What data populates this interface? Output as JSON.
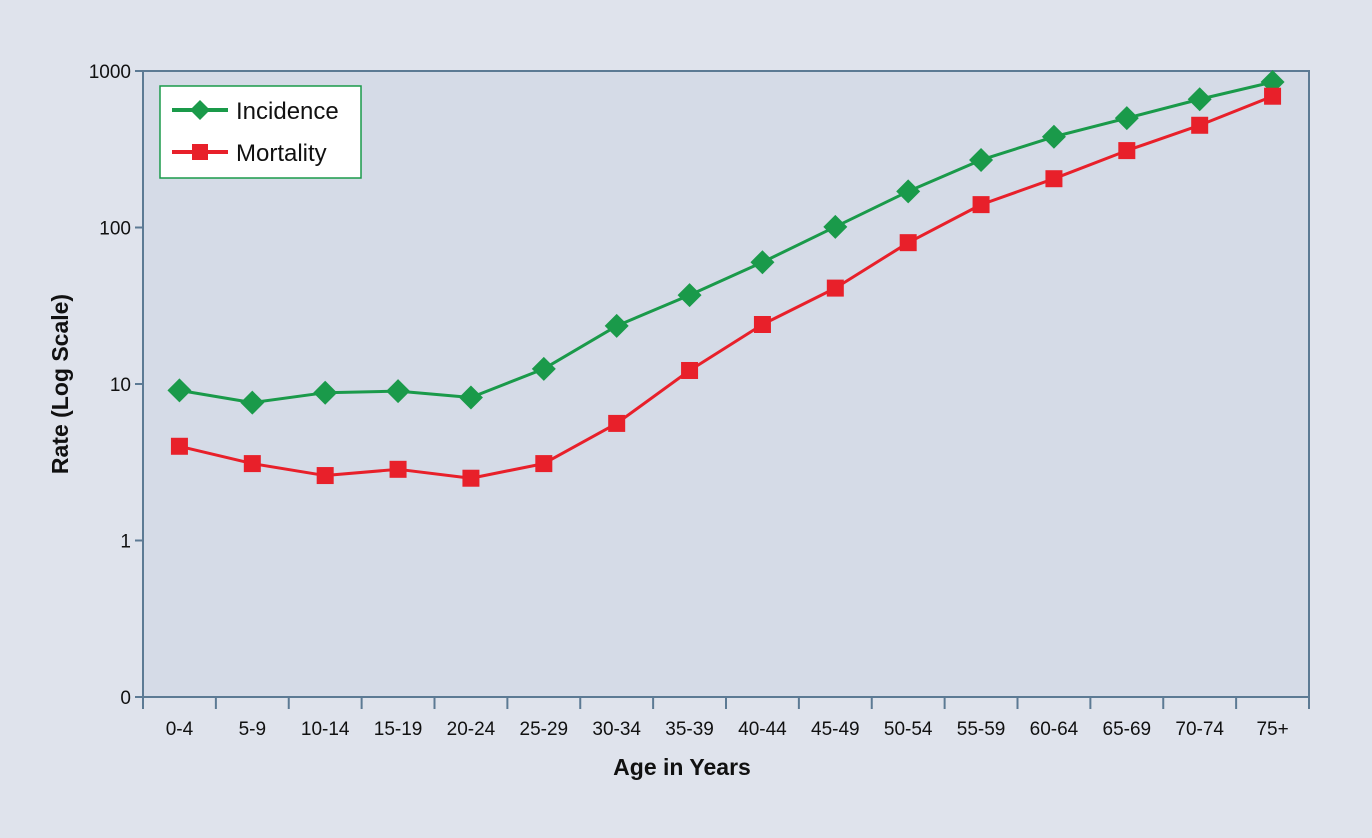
{
  "chart_data": {
    "type": "line",
    "title": "",
    "xlabel": "Age in Years",
    "ylabel": "Rate (Log Scale)",
    "yscale": "log",
    "ylim": [
      0.1,
      1000
    ],
    "yticks": [
      {
        "value": 0.1,
        "label": "0"
      },
      {
        "value": 1,
        "label": "1"
      },
      {
        "value": 10,
        "label": "10"
      },
      {
        "value": 100,
        "label": "100"
      },
      {
        "value": 1000,
        "label": "1000"
      }
    ],
    "categories": [
      "0-4",
      "5-9",
      "10-14",
      "15-19",
      "20-24",
      "25-29",
      "30-34",
      "35-39",
      "40-44",
      "45-49",
      "50-54",
      "55-59",
      "60-64",
      "65-69",
      "70-74",
      "75+"
    ],
    "series": [
      {
        "name": "Incidence",
        "color": "#1a9a4a",
        "marker": "diamond",
        "values": [
          9.1,
          7.6,
          8.8,
          9.0,
          8.2,
          12.5,
          23.5,
          37,
          60,
          101,
          170,
          270,
          380,
          500,
          660,
          850
        ]
      },
      {
        "name": "Mortality",
        "color": "#e8202a",
        "marker": "square",
        "values": [
          4.0,
          3.1,
          2.6,
          2.85,
          2.5,
          3.1,
          5.6,
          12.2,
          24,
          41,
          80,
          140,
          205,
          310,
          450,
          690
        ]
      }
    ],
    "legend": {
      "placement": "top-left"
    },
    "grid": false,
    "plot_background": "#d5dbe7",
    "axis_color": "#5c7a94"
  }
}
